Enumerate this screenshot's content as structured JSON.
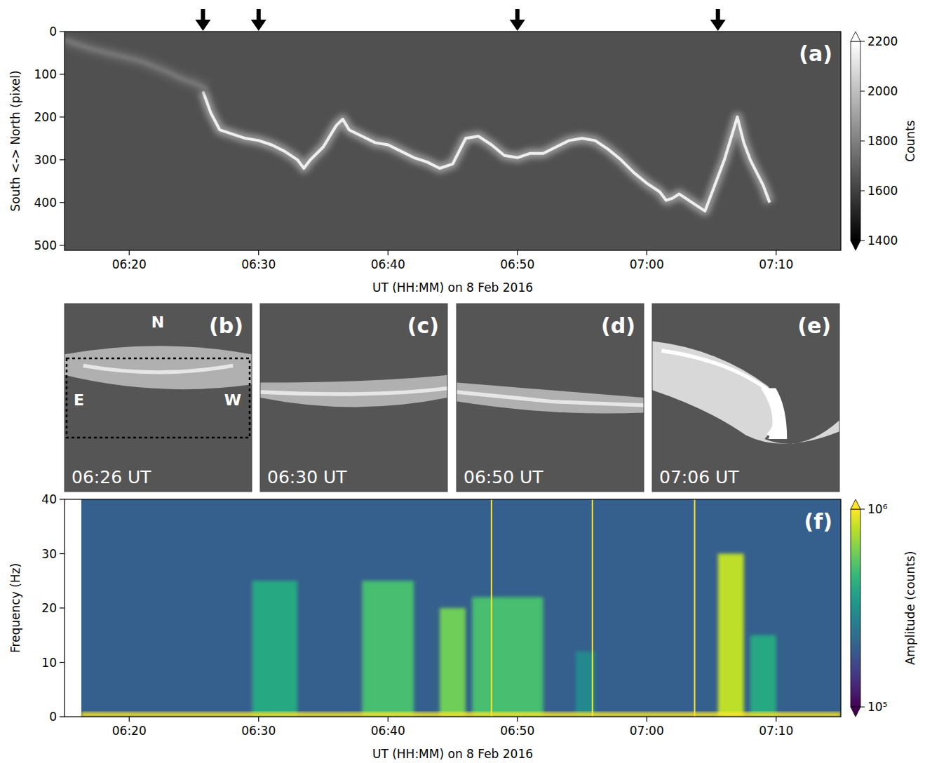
{
  "chart_data": [
    {
      "type": "keogram",
      "panel_label": "(a)",
      "x_label": "UT (HH:MM) on 8 Feb 2016",
      "y_label": "South <-> North (pixel)",
      "xlim": [
        15,
        75
      ],
      "xticks": [
        {
          "value": 20,
          "label": "06:20"
        },
        {
          "value": 30,
          "label": "06:30"
        },
        {
          "value": 40,
          "label": "06:40"
        },
        {
          "value": 50,
          "label": "06:50"
        },
        {
          "value": 60,
          "label": "07:00"
        },
        {
          "value": 70,
          "label": "07:10"
        }
      ],
      "ylim": [
        512,
        0
      ],
      "yticks": [
        0,
        100,
        200,
        300,
        400,
        500
      ],
      "background": 1650,
      "series": [
        {
          "brightness": 2150,
          "x": [
            25.7,
            26.3,
            27,
            28,
            29,
            30,
            31,
            32,
            33,
            33.5,
            34,
            35,
            36,
            36.5,
            37,
            38,
            39,
            40,
            41,
            42,
            43,
            44,
            45,
            45.5,
            46,
            47,
            48,
            49,
            50,
            51,
            52,
            53,
            54,
            55,
            56,
            57,
            58,
            59,
            60,
            61,
            61.5,
            62,
            62.5,
            63,
            64,
            64.5,
            65,
            65.5,
            66,
            66.5,
            67,
            67.5,
            68,
            69,
            69.5
          ],
          "values": [
            140,
            190,
            230,
            240,
            250,
            255,
            265,
            280,
            300,
            320,
            300,
            270,
            220,
            205,
            230,
            245,
            260,
            265,
            280,
            295,
            305,
            320,
            310,
            280,
            250,
            245,
            265,
            290,
            295,
            285,
            285,
            270,
            255,
            250,
            255,
            275,
            300,
            330,
            355,
            375,
            395,
            390,
            380,
            390,
            410,
            420,
            380,
            340,
            300,
            250,
            200,
            260,
            300,
            360,
            400
          ]
        },
        {
          "brightness": 1780,
          "x": [
            15,
            17,
            19,
            21,
            23,
            24,
            25,
            26
          ],
          "values": [
            20,
            40,
            55,
            70,
            95,
            110,
            120,
            135
          ]
        }
      ],
      "arrows_x": [
        25.7,
        30,
        50,
        65.5
      ],
      "colorbar": {
        "label": "Counts",
        "range": [
          1400,
          2200
        ],
        "ticks": [
          1400,
          1600,
          1800,
          2000,
          2200
        ]
      }
    },
    {
      "type": "image",
      "panels": [
        {
          "label": "(b)",
          "time": "06:26 UT",
          "compass": [
            "N",
            "E",
            "W"
          ]
        },
        {
          "label": "(c)",
          "time": "06:30 UT"
        },
        {
          "label": "(d)",
          "time": "06:50 UT"
        },
        {
          "label": "(e)",
          "time": "07:06 UT"
        }
      ]
    },
    {
      "type": "spectrogram",
      "panel_label": "(f)",
      "x_label": "UT (HH:MM) on 8 Feb 2016",
      "y_label": "Frequency (Hz)",
      "xlim": [
        15,
        75
      ],
      "xticks": [
        {
          "value": 20,
          "label": "06:20"
        },
        {
          "value": 30,
          "label": "06:30"
        },
        {
          "value": 40,
          "label": "06:40"
        },
        {
          "value": 50,
          "label": "06:50"
        },
        {
          "value": 60,
          "label": "07:00"
        },
        {
          "value": 70,
          "label": "07:10"
        }
      ],
      "ylim": [
        0,
        40
      ],
      "yticks": [
        0,
        10,
        20,
        30,
        40
      ],
      "cells": [
        {
          "x": [
            16.3,
            75
          ],
          "y": [
            0,
            40
          ],
          "value": 200000
        },
        {
          "x": [
            29.5,
            33
          ],
          "y": [
            0,
            25
          ],
          "value": 400000
        },
        {
          "x": [
            38,
            42
          ],
          "y": [
            0,
            25
          ],
          "value": 500000
        },
        {
          "x": [
            44,
            46
          ],
          "y": [
            0,
            20
          ],
          "value": 600000
        },
        {
          "x": [
            46.5,
            52
          ],
          "y": [
            0,
            22
          ],
          "value": 500000
        },
        {
          "x": [
            54.5,
            56
          ],
          "y": [
            0,
            12
          ],
          "value": 300000
        },
        {
          "x": [
            65.5,
            67.5
          ],
          "y": [
            0,
            30
          ],
          "value": 800000
        },
        {
          "x": [
            68,
            70
          ],
          "y": [
            0,
            15
          ],
          "value": 400000
        },
        {
          "x": [
            16.3,
            75
          ],
          "y": [
            0,
            0.8
          ],
          "value": 1000000
        }
      ],
      "lines_x": [
        48,
        55.8,
        63.7
      ],
      "line_value": 1000000,
      "colorbar": {
        "label": "Amplitude (counts)",
        "log": true,
        "range": [
          100000,
          1000000
        ],
        "ticks": [
          {
            "value": 100000,
            "label": "10⁵"
          },
          {
            "value": 1000000,
            "label": "10⁶"
          }
        ]
      }
    }
  ]
}
